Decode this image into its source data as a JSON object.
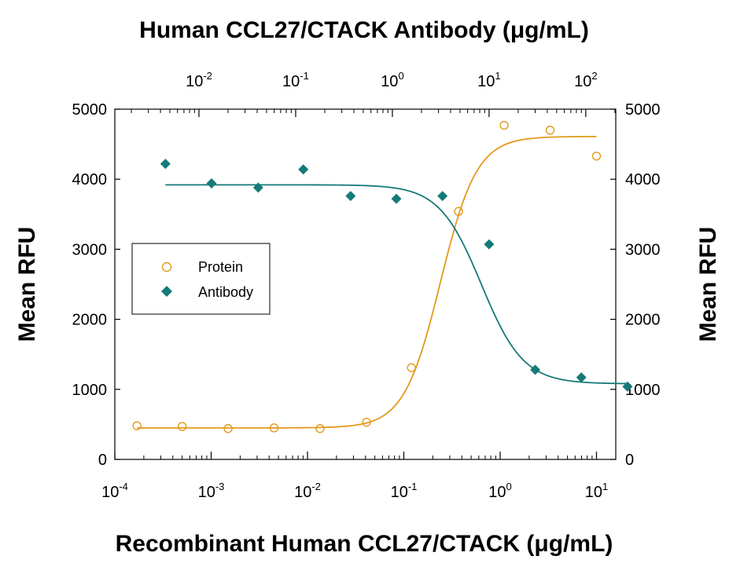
{
  "chart_data": {
    "type": "scatter",
    "title_top": "Human CCL27/CTACK Antibody (μg/mL)",
    "xlabel": "Recombinant Human CCL27/CTACK (μg/mL)",
    "ylabel_left": "Mean RFU",
    "ylabel_right": "Mean RFU",
    "ylim": [
      0,
      5000
    ],
    "yticks": [
      "0",
      "1000",
      "2000",
      "3000",
      "4000",
      "5000"
    ],
    "bottom_axis": {
      "scale": "log",
      "xlim_log10": [
        -4,
        1.2
      ],
      "ticks": [
        {
          "base": "10",
          "exp": "-4",
          "log10": -4
        },
        {
          "base": "10",
          "exp": "-3",
          "log10": -3
        },
        {
          "base": "10",
          "exp": "-2",
          "log10": -2
        },
        {
          "base": "10",
          "exp": "-1",
          "log10": -1
        },
        {
          "base": "10",
          "exp": "0",
          "log10": 0
        },
        {
          "base": "10",
          "exp": "1",
          "log10": 1
        }
      ]
    },
    "top_axis": {
      "scale": "log",
      "xlim_log10": [
        -2.87,
        2.31
      ],
      "ticks": [
        {
          "base": "10",
          "exp": "-2",
          "log10": -2
        },
        {
          "base": "10",
          "exp": "-1",
          "log10": -1
        },
        {
          "base": "10",
          "exp": "0",
          "log10": 0
        },
        {
          "base": "10",
          "exp": "1",
          "log10": 1
        },
        {
          "base": "10",
          "exp": "2",
          "log10": 2
        }
      ]
    },
    "series": [
      {
        "name": "Protein",
        "marker": "open-circle",
        "color": "#E39A1E",
        "axis": "bottom",
        "points": [
          {
            "x": 0.00017,
            "y": 480
          },
          {
            "x": 0.0005,
            "y": 470
          },
          {
            "x": 0.0015,
            "y": 440
          },
          {
            "x": 0.0045,
            "y": 450
          },
          {
            "x": 0.0135,
            "y": 440
          },
          {
            "x": 0.041,
            "y": 530
          },
          {
            "x": 0.12,
            "y": 1310
          },
          {
            "x": 0.37,
            "y": 3540
          },
          {
            "x": 1.1,
            "y": 4770
          },
          {
            "x": 3.3,
            "y": 4700
          },
          {
            "x": 10,
            "y": 4330
          }
        ],
        "fit": {
          "bottom": 450,
          "top": 4610,
          "ec50_log10": -0.62,
          "slope": 2.3
        }
      },
      {
        "name": "Antibody",
        "marker": "filled-diamond",
        "color": "#157A78",
        "axis": "top",
        "points": [
          {
            "x": 0.0045,
            "y": 4220
          },
          {
            "x": 0.0135,
            "y": 3940
          },
          {
            "x": 0.041,
            "y": 3880
          },
          {
            "x": 0.12,
            "y": 4140
          },
          {
            "x": 0.37,
            "y": 3760
          },
          {
            "x": 1.1,
            "y": 3720
          },
          {
            "x": 3.3,
            "y": 3760
          },
          {
            "x": 10,
            "y": 3070
          },
          {
            "x": 30,
            "y": 1280
          },
          {
            "x": 90,
            "y": 1170
          },
          {
            "x": 270,
            "y": 1040
          }
        ],
        "fit": {
          "bottom": 1080,
          "top": 3920,
          "ec50_log10": 0.92,
          "slope": -2.0
        }
      }
    ],
    "legend": {
      "placement": "center-left"
    },
    "grid": false
  }
}
